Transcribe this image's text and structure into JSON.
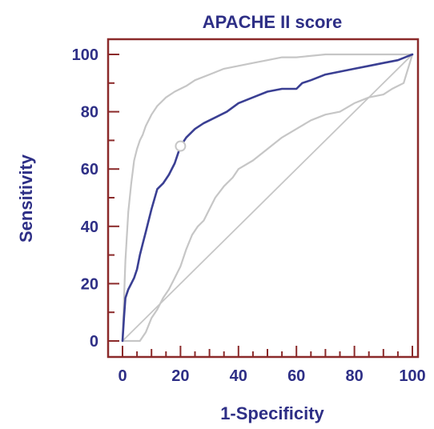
{
  "chart_data": {
    "type": "line",
    "title": "APACHE II score",
    "xlabel": "1-Specificity",
    "ylabel": "Sensitivity",
    "xlim": [
      0,
      100
    ],
    "ylim": [
      0,
      100
    ],
    "x_ticks": [
      0,
      20,
      40,
      60,
      80,
      100
    ],
    "y_ticks": [
      0,
      20,
      40,
      60,
      80,
      100
    ],
    "grid": false,
    "legend": "none",
    "colors": {
      "roc": "#3a3f93",
      "ci": "#c6c6c6",
      "reference": "#c6c6c6",
      "frame": "#8b2a2a",
      "text": "#2e2f86",
      "marker_fill": "#ffffff"
    },
    "series": [
      {
        "role": "roc",
        "x": [
          0,
          0.5,
          1,
          2,
          3,
          4,
          5,
          6,
          7,
          8,
          9,
          10,
          12,
          14,
          16,
          18,
          20,
          22,
          25,
          28,
          32,
          36,
          40,
          45,
          50,
          55,
          60,
          62,
          65,
          70,
          75,
          80,
          85,
          90,
          95,
          100
        ],
        "y": [
          0,
          8,
          15,
          18,
          20,
          22,
          25,
          30,
          34,
          38,
          42,
          46,
          53,
          55,
          58,
          62,
          68,
          71,
          74,
          76,
          78,
          80,
          83,
          85,
          87,
          88,
          88,
          90,
          91,
          93,
          94,
          95,
          96,
          97,
          98,
          100
        ]
      },
      {
        "role": "ci-upper",
        "x": [
          0,
          1,
          2,
          3,
          4,
          5,
          6,
          7,
          8,
          10,
          12,
          15,
          18,
          22,
          25,
          30,
          35,
          40,
          45,
          50,
          55,
          60,
          70,
          80,
          90,
          100
        ],
        "y": [
          0,
          28,
          45,
          55,
          63,
          67,
          70,
          72,
          75,
          79,
          82,
          85,
          87,
          89,
          91,
          93,
          95,
          96,
          97,
          98,
          99,
          99,
          100,
          100,
          100,
          100
        ]
      },
      {
        "role": "ci-lower",
        "x": [
          0,
          2,
          4,
          6,
          8,
          10,
          12,
          14,
          16,
          18,
          20,
          22,
          24,
          26,
          28,
          30,
          32,
          35,
          38,
          40,
          45,
          50,
          55,
          60,
          65,
          70,
          75,
          80,
          85,
          90,
          93,
          95,
          97,
          100
        ],
        "y": [
          0,
          0,
          0,
          0,
          3,
          8,
          11,
          15,
          18,
          22,
          26,
          32,
          37,
          40,
          42,
          46,
          50,
          54,
          57,
          60,
          63,
          67,
          71,
          74,
          77,
          79,
          80,
          83,
          85,
          86,
          88,
          89,
          90,
          100
        ]
      },
      {
        "role": "reference",
        "x": [
          0,
          100
        ],
        "y": [
          0,
          100
        ]
      }
    ],
    "markers": [
      {
        "x": 20,
        "y": 68,
        "style": "open-circle"
      }
    ]
  }
}
